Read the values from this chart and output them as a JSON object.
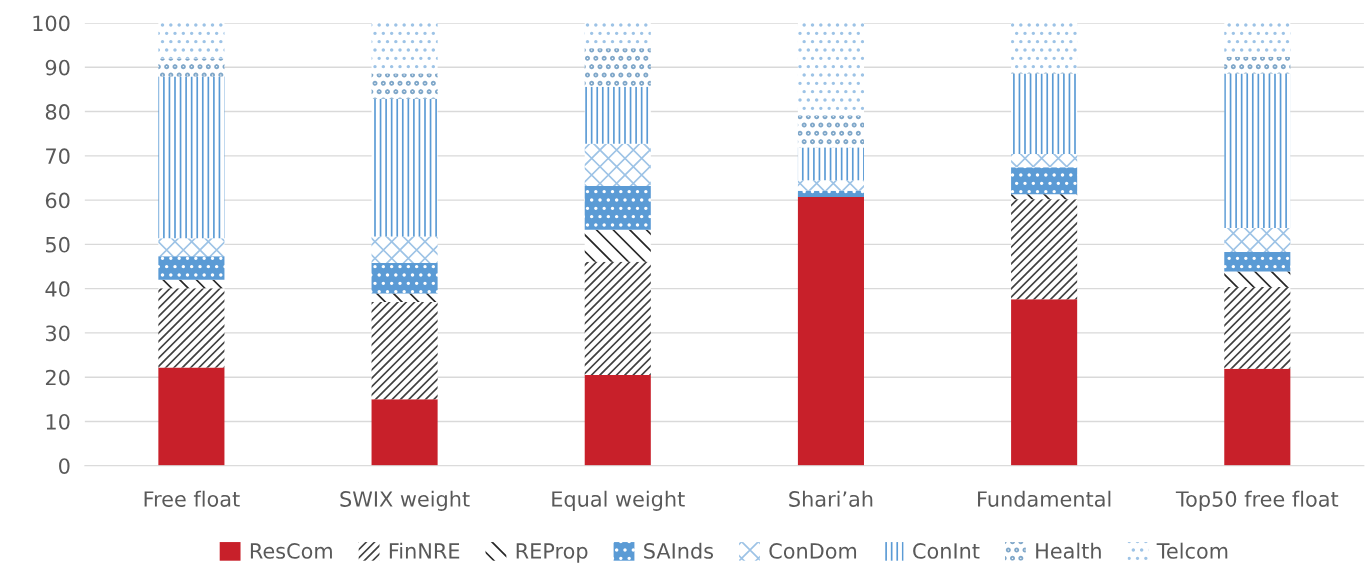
{
  "chart_data": {
    "type": "bar",
    "stacked": true,
    "categories": [
      "Free float",
      "SWIX weight",
      "Equal weight",
      "Shari’ah",
      "Fundamental",
      "Top50 free float"
    ],
    "series": [
      {
        "name": "ResCom",
        "color": "#c8202a",
        "values": [
          22.2,
          15.0,
          20.5,
          60.7,
          37.6,
          21.9
        ]
      },
      {
        "name": "FinNRE",
        "color": "#404040",
        "values": [
          17.9,
          22.0,
          25.6,
          0,
          22.6,
          18.5
        ]
      },
      {
        "name": "REProp",
        "color": "#262626",
        "values": [
          1.9,
          1.9,
          7.2,
          0,
          1.1,
          3.5
        ]
      },
      {
        "name": "SAInds",
        "color": "#5b9bd5",
        "values": [
          5.3,
          6.9,
          9.9,
          1.4,
          6.1,
          4.4
        ]
      },
      {
        "name": "ConDom",
        "color": "#9dc3e6",
        "values": [
          4.1,
          6.0,
          9.5,
          2.4,
          3.0,
          5.4
        ]
      },
      {
        "name": "ConInt",
        "color": "#5b9bd5",
        "values": [
          36.5,
          31.1,
          12.9,
          7.4,
          18.2,
          34.9
        ]
      },
      {
        "name": "Health",
        "color": "#7fa7c9",
        "values": [
          4.1,
          5.7,
          8.7,
          7.2,
          0.4,
          3.8
        ]
      },
      {
        "name": "Telcom",
        "color": "#9dc3e6",
        "values": [
          8.0,
          11.4,
          5.7,
          20.9,
          11.0,
          7.6
        ]
      }
    ],
    "ylim": [
      0,
      100
    ],
    "yticks": [
      0,
      10,
      20,
      30,
      40,
      50,
      60,
      70,
      80,
      90,
      100
    ],
    "grid": "y",
    "legend": "bottom"
  }
}
